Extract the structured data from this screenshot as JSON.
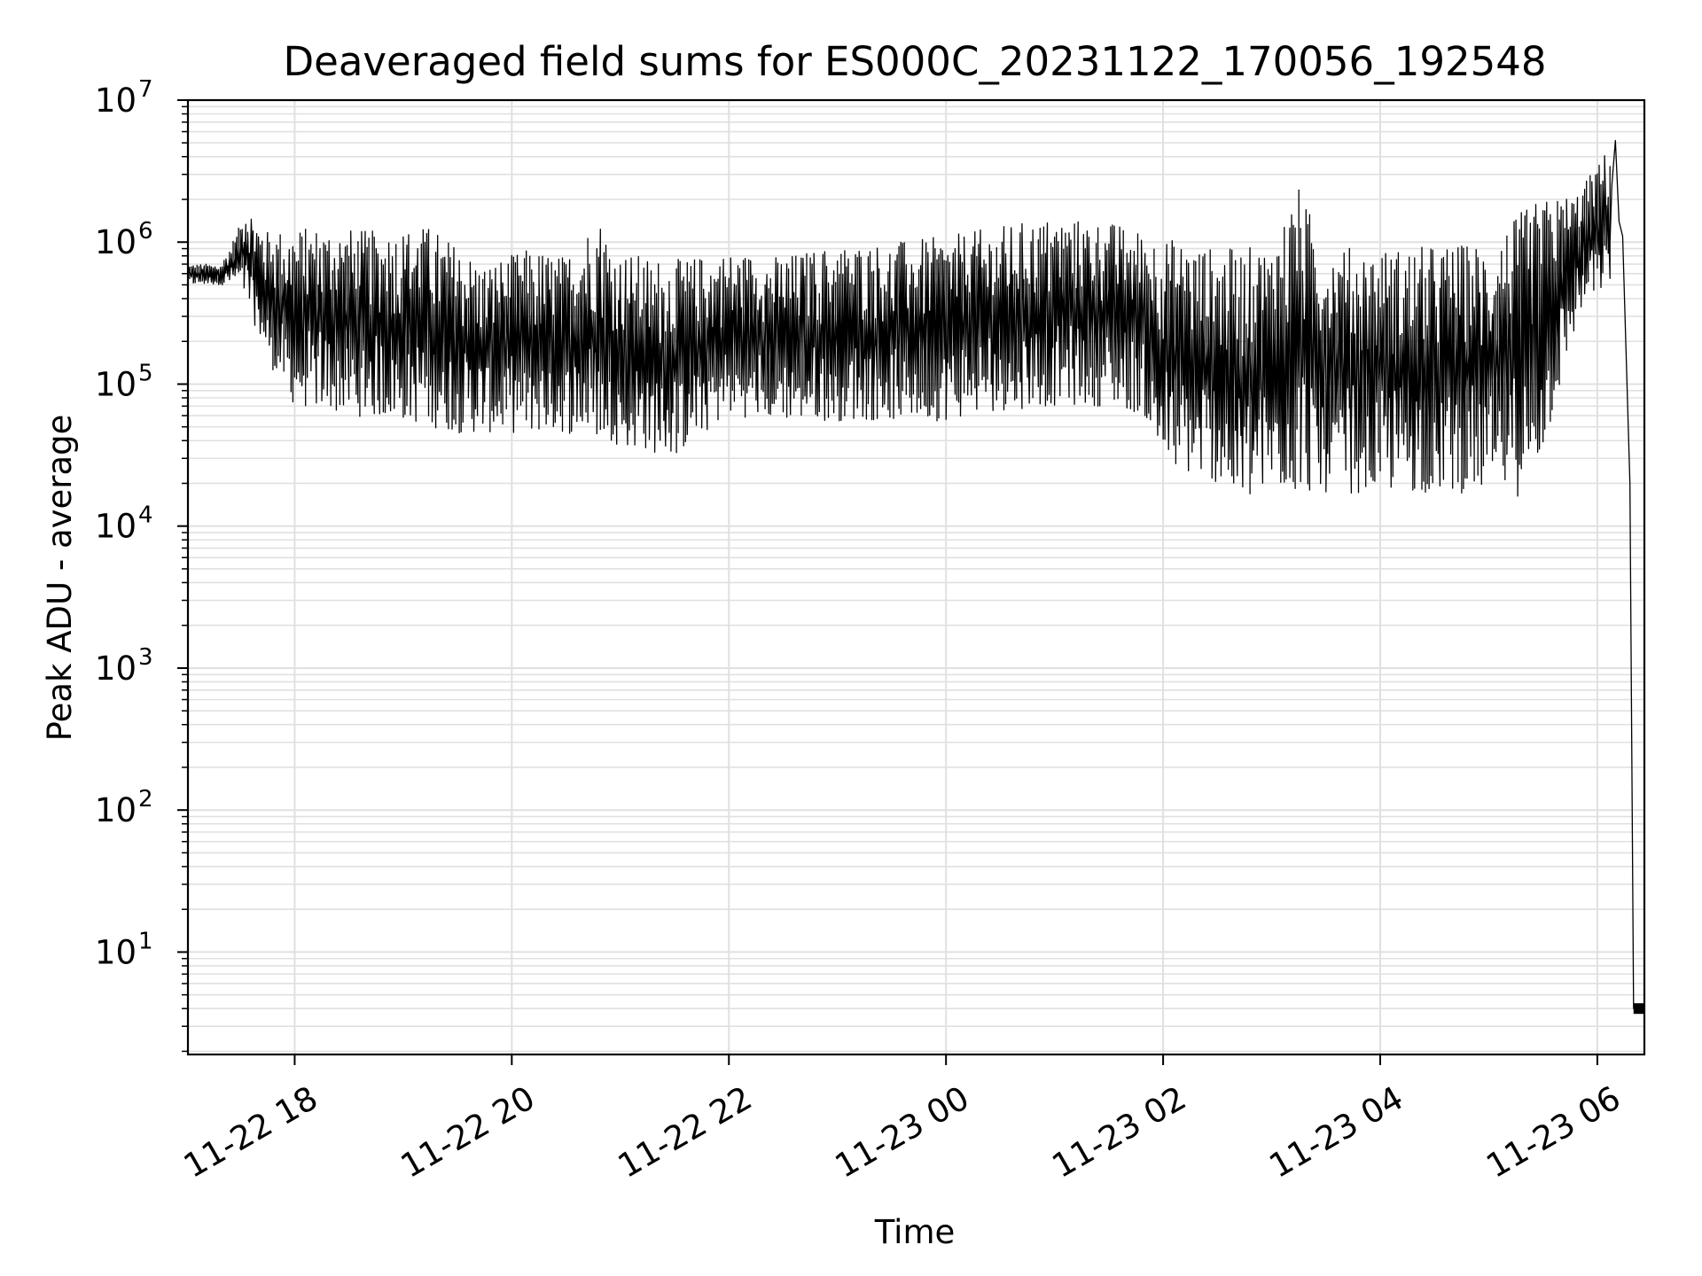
{
  "chart_data": {
    "type": "line",
    "title": "Deaveraged field sums for ES000C_20231122_170056_192548",
    "xlabel": "Time",
    "ylabel": "Peak ADU - average",
    "xscale": "time",
    "yscale": "log",
    "xlim": [
      "2023-11-22 17:01",
      "2023-11-23 06:26"
    ],
    "ylim": [
      1.9,
      10000000
    ],
    "grid": true,
    "legend": "none",
    "line_color": "#000000",
    "grid_color": "#e0e0e0",
    "x_ticks": [
      {
        "value": "2023-11-22 18:00",
        "label": "11-22 18"
      },
      {
        "value": "2023-11-22 20:00",
        "label": "11-22 20"
      },
      {
        "value": "2023-11-22 22:00",
        "label": "11-22 22"
      },
      {
        "value": "2023-11-23 00:00",
        "label": "11-23 00"
      },
      {
        "value": "2023-11-23 02:00",
        "label": "11-23 02"
      },
      {
        "value": "2023-11-23 04:00",
        "label": "11-23 04"
      },
      {
        "value": "2023-11-23 06:00",
        "label": "11-23 06"
      }
    ],
    "y_ticks": [
      {
        "value": 10,
        "base": "10",
        "exp": "1"
      },
      {
        "value": 100,
        "base": "10",
        "exp": "2"
      },
      {
        "value": 1000,
        "base": "10",
        "exp": "3"
      },
      {
        "value": 10000,
        "base": "10",
        "exp": "4"
      },
      {
        "value": 100000,
        "base": "10",
        "exp": "5"
      },
      {
        "value": 1000000,
        "base": "10",
        "exp": "6"
      },
      {
        "value": 10000000,
        "base": "10",
        "exp": "7"
      }
    ],
    "series": [
      {
        "values_note": "Dense oscillating trace approximated by its upper and lower envelopes (data units).",
        "upper_envelope": [
          [
            "2023-11-22 17:01",
            700000
          ],
          [
            "2023-11-22 17:20",
            700000
          ],
          [
            "2023-11-22 17:30",
            1300000
          ],
          [
            "2023-11-22 17:33",
            2000000
          ],
          [
            "2023-11-22 17:45",
            1200000
          ],
          [
            "2023-11-22 18:15",
            1300000
          ],
          [
            "2023-11-22 18:45",
            1200000
          ],
          [
            "2023-11-22 19:15",
            1300000
          ],
          [
            "2023-11-22 19:45",
            700000
          ],
          [
            "2023-11-22 20:10",
            900000
          ],
          [
            "2023-11-22 20:30",
            800000
          ],
          [
            "2023-11-22 20:48",
            1550000
          ],
          [
            "2023-11-22 21:00",
            850000
          ],
          [
            "2023-11-22 21:30",
            750000
          ],
          [
            "2023-11-22 22:00",
            850000
          ],
          [
            "2023-11-22 22:30",
            800000
          ],
          [
            "2023-11-22 23:00",
            950000
          ],
          [
            "2023-11-22 23:30",
            1000000
          ],
          [
            "2023-11-23 00:00",
            1100000
          ],
          [
            "2023-11-23 00:30",
            1300000
          ],
          [
            "2023-11-23 01:00",
            1500000
          ],
          [
            "2023-11-23 01:30",
            1400000
          ],
          [
            "2023-11-23 02:00",
            1100000
          ],
          [
            "2023-11-23 02:30",
            900000
          ],
          [
            "2023-11-23 03:00",
            950000
          ],
          [
            "2023-11-23 03:15",
            2500000
          ],
          [
            "2023-11-23 03:30",
            950000
          ],
          [
            "2023-11-23 04:00",
            900000
          ],
          [
            "2023-11-23 04:30",
            950000
          ],
          [
            "2023-11-23 05:00",
            1000000
          ],
          [
            "2023-11-23 05:25",
            1900000
          ],
          [
            "2023-11-23 05:50",
            2300000
          ],
          [
            "2023-11-23 06:10",
            5200000
          ],
          [
            "2023-11-23 06:12",
            1400000
          ],
          [
            "2023-11-23 06:14",
            1100000
          ],
          [
            "2023-11-23 06:18",
            20000
          ],
          [
            "2023-11-23 06:20",
            4
          ],
          [
            "2023-11-23 06:26",
            4
          ]
        ],
        "lower_envelope": [
          [
            "2023-11-22 17:01",
            500000
          ],
          [
            "2023-11-22 17:20",
            500000
          ],
          [
            "2023-11-22 17:30",
            500000
          ],
          [
            "2023-11-22 17:45",
            150000
          ],
          [
            "2023-11-22 18:00",
            70000
          ],
          [
            "2023-11-22 18:30",
            60000
          ],
          [
            "2023-11-22 19:00",
            55000
          ],
          [
            "2023-11-22 19:30",
            45000
          ],
          [
            "2023-11-22 20:00",
            45000
          ],
          [
            "2023-11-22 20:30",
            45000
          ],
          [
            "2023-11-22 20:50",
            40000
          ],
          [
            "2023-11-22 21:30",
            30000
          ],
          [
            "2023-11-22 22:00",
            60000
          ],
          [
            "2023-11-22 22:30",
            55000
          ],
          [
            "2023-11-22 23:00",
            55000
          ],
          [
            "2023-11-22 23:30",
            55000
          ],
          [
            "2023-11-23 00:00",
            55000
          ],
          [
            "2023-11-23 00:30",
            65000
          ],
          [
            "2023-11-23 01:00",
            70000
          ],
          [
            "2023-11-23 01:30",
            70000
          ],
          [
            "2023-11-23 01:50",
            60000
          ],
          [
            "2023-11-23 02:00",
            25000
          ],
          [
            "2023-11-23 02:30",
            20000
          ],
          [
            "2023-11-23 02:43",
            13000
          ],
          [
            "2023-11-23 03:00",
            17000
          ],
          [
            "2023-11-23 03:30",
            17000
          ],
          [
            "2023-11-23 04:00",
            17000
          ],
          [
            "2023-11-23 04:30",
            17000
          ],
          [
            "2023-11-23 05:00",
            17000
          ],
          [
            "2023-11-23 05:20",
            16000
          ],
          [
            "2023-11-23 05:30",
            30000
          ],
          [
            "2023-11-23 05:50",
            300000
          ],
          [
            "2023-11-23 06:08",
            500000
          ]
        ]
      }
    ]
  }
}
